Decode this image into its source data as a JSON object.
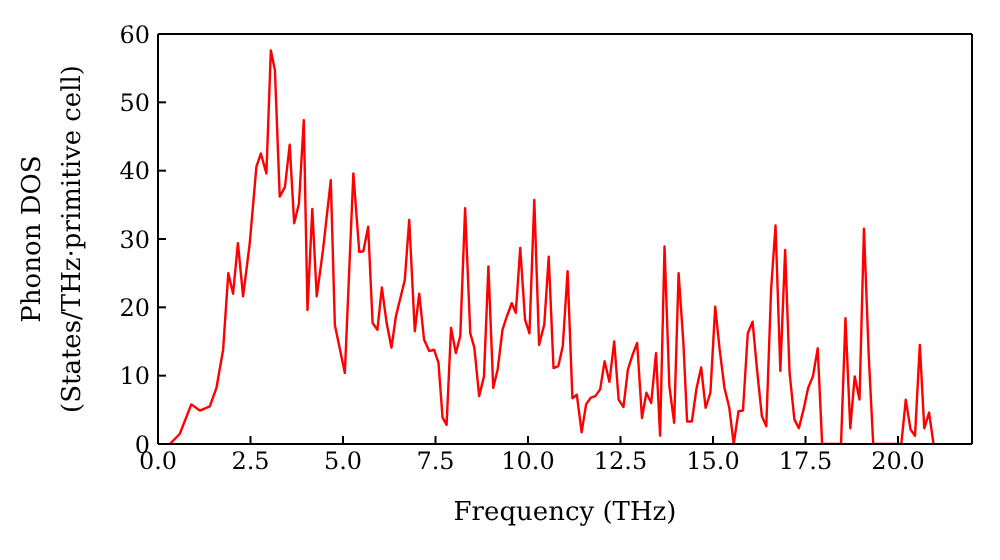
{
  "chart_data": {
    "type": "line",
    "xlabel": "Frequency (THz)",
    "ylabel": "Phonon DOS\n(States/THz·primitive cell)",
    "xlim": [
      0,
      22
    ],
    "ylim": [
      0,
      60
    ],
    "xticks": [
      {
        "value": 0,
        "label": "0.0"
      },
      {
        "value": 2.5,
        "label": "2.5"
      },
      {
        "value": 5,
        "label": "5.0"
      },
      {
        "value": 7.5,
        "label": "7.5"
      },
      {
        "value": 10,
        "label": "10.0"
      },
      {
        "value": 12.5,
        "label": "12.5"
      },
      {
        "value": 15,
        "label": "15.0"
      },
      {
        "value": 17.5,
        "label": "17.5"
      },
      {
        "value": 20,
        "label": "20.0"
      }
    ],
    "yticks": [
      0,
      10,
      20,
      30,
      40,
      50,
      60
    ],
    "marker": "none",
    "line_style": "solid",
    "series": [
      {
        "color": "#ff0000",
        "x": [
          0.32,
          0.59,
          0.9,
          1.13,
          1.4,
          1.58,
          1.76,
          1.9,
          2.03,
          2.16,
          2.3,
          2.48,
          2.66,
          2.78,
          2.93,
          3.05,
          3.16,
          3.29,
          3.43,
          3.56,
          3.68,
          3.81,
          3.94,
          4.04,
          4.17,
          4.29,
          4.46,
          4.67,
          4.78,
          5.05,
          5.28,
          5.44,
          5.55,
          5.68,
          5.8,
          5.93,
          6.05,
          6.18,
          6.31,
          6.43,
          6.67,
          6.79,
          6.94,
          7.06,
          7.19,
          7.33,
          7.46,
          7.58,
          7.69,
          7.8,
          7.92,
          8.05,
          8.17,
          8.3,
          8.44,
          8.55,
          8.68,
          8.81,
          8.93,
          9.06,
          9.18,
          9.31,
          9.43,
          9.56,
          9.67,
          9.79,
          9.92,
          10.04,
          10.17,
          10.3,
          10.44,
          10.56,
          10.69,
          10.82,
          10.94,
          11.07,
          11.2,
          11.32,
          11.45,
          11.57,
          11.7,
          11.82,
          11.95,
          12.07,
          12.2,
          12.33,
          12.45,
          12.58,
          12.7,
          12.83,
          12.95,
          13.08,
          13.2,
          13.33,
          13.46,
          13.57,
          13.69,
          13.82,
          13.95,
          14.07,
          14.2,
          14.3,
          14.43,
          14.55,
          14.68,
          14.8,
          14.93,
          15.06,
          15.18,
          15.31,
          15.44,
          15.56,
          15.69,
          15.81,
          15.94,
          16.07,
          16.19,
          16.32,
          16.44,
          16.57,
          16.69,
          16.82,
          16.95,
          17.07,
          17.2,
          17.32,
          17.45,
          17.57,
          17.7,
          17.83,
          17.95,
          18.46,
          18.58,
          18.71,
          18.83,
          18.96,
          19.08,
          19.21,
          19.33,
          20.09,
          20.21,
          20.34,
          20.46,
          20.59,
          20.71,
          20.84,
          20.96
        ],
        "values": [
          0,
          1.5,
          5.8,
          4.9,
          5.5,
          8.2,
          13.8,
          25,
          22,
          29.4,
          21.6,
          29.4,
          40.6,
          42.5,
          39.6,
          57.6,
          54.7,
          36.2,
          37.6,
          43.8,
          32.3,
          35.2,
          47.4,
          19.6,
          34.4,
          21.6,
          28.4,
          38.6,
          17.4,
          10.4,
          39.6,
          28.1,
          28.2,
          31.8,
          17.7,
          16.7,
          22.9,
          17.7,
          14.1,
          18.7,
          24,
          32.8,
          16.5,
          22,
          15.3,
          13.6,
          13.8,
          11.9,
          3.9,
          2.8,
          17,
          13.3,
          15.8,
          34.5,
          16.2,
          14.1,
          7,
          9.9,
          26,
          8.2,
          10.9,
          16.7,
          18.7,
          20.6,
          19.2,
          28.7,
          18.2,
          16.2,
          35.7,
          14.5,
          17.5,
          27.4,
          11.1,
          11.4,
          14.3,
          25.3,
          6.7,
          7.2,
          1.7,
          5.8,
          6.8,
          7,
          8,
          12.1,
          9.1,
          15,
          6.5,
          5.4,
          10.9,
          13.1,
          14.8,
          3.8,
          7.5,
          6,
          13.3,
          1.2,
          28.9,
          8.5,
          3.1,
          25,
          14.8,
          3.3,
          3.3,
          8,
          11.2,
          5.3,
          7.5,
          20.1,
          13.8,
          8.2,
          5.3,
          0,
          4.8,
          4.9,
          16.2,
          17.9,
          10.9,
          4.1,
          2.6,
          22.6,
          32,
          10.7,
          28.4,
          10.4,
          3.6,
          2.3,
          5.1,
          8.2,
          9.9,
          14,
          0,
          0,
          18.4,
          2.3,
          9.9,
          6.5,
          31.5,
          12.8,
          0,
          0,
          6.5,
          2.1,
          1.2,
          14.5,
          2.3,
          4.6,
          0
        ]
      }
    ]
  }
}
